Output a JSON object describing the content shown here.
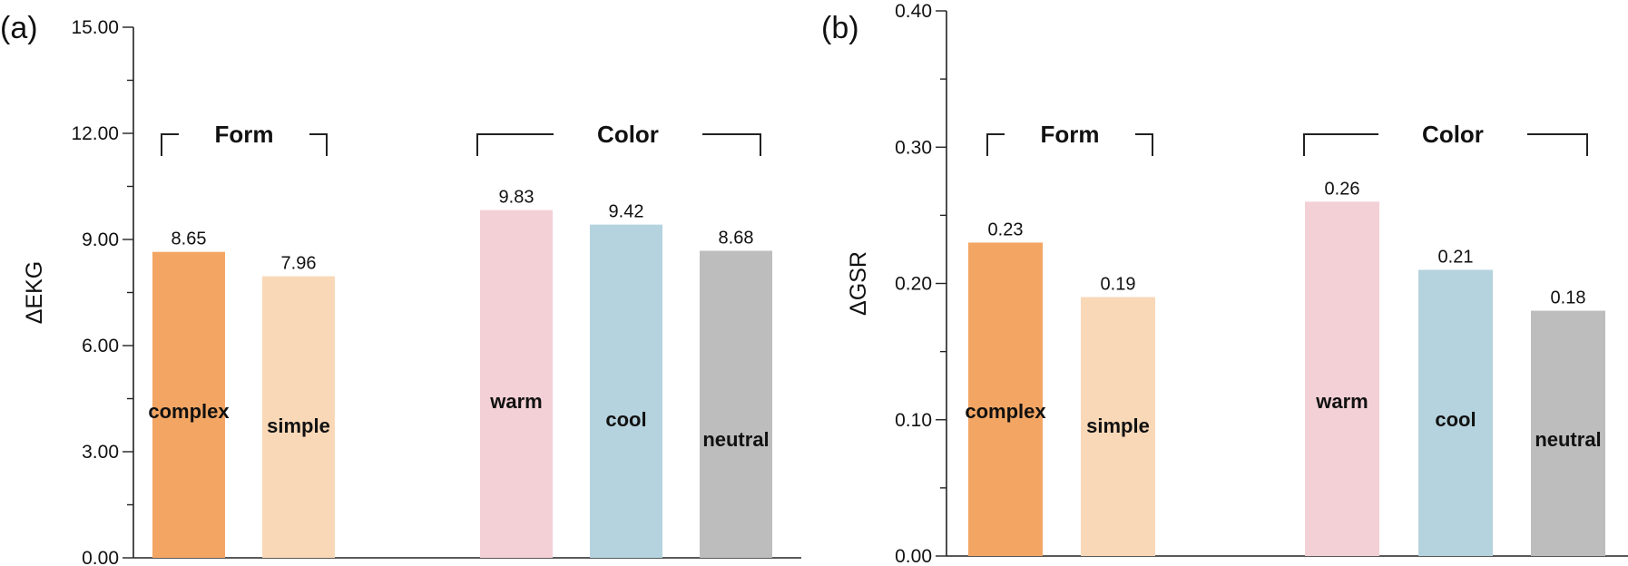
{
  "chart_data": [
    {
      "type": "bar",
      "panel_label": "(a)",
      "ylabel": "ΔEKG",
      "ylim": [
        0,
        15
      ],
      "yticks": [
        "0.00",
        "3.00",
        "6.00",
        "9.00",
        "12.00",
        "15.00"
      ],
      "ytick_values": [
        0,
        3,
        6,
        9,
        12,
        15
      ],
      "categories": [
        "complex",
        "simple",
        "warm",
        "cool",
        "neutral"
      ],
      "values": [
        8.65,
        7.96,
        9.83,
        9.42,
        8.68
      ],
      "value_labels": [
        "8.65",
        "7.96",
        "9.83",
        "9.42",
        "8.68"
      ],
      "colors": [
        "#f3a664",
        "#f9d8b8",
        "#f3d0d5",
        "#b5d3de",
        "#bdbdbd"
      ],
      "groups": [
        {
          "label": "Form",
          "members": [
            0,
            1
          ]
        },
        {
          "label": "Color",
          "members": [
            2,
            3,
            4
          ]
        }
      ]
    },
    {
      "type": "bar",
      "panel_label": "(b)",
      "ylabel": "ΔGSR",
      "ylim": [
        0,
        0.4
      ],
      "yticks": [
        "0.00",
        "0.10",
        "0.20",
        "0.30",
        "0.40"
      ],
      "ytick_values": [
        0,
        0.1,
        0.2,
        0.3,
        0.4
      ],
      "categories": [
        "complex",
        "simple",
        "warm",
        "cool",
        "neutral"
      ],
      "values": [
        0.23,
        0.19,
        0.26,
        0.21,
        0.18
      ],
      "value_labels": [
        "0.23",
        "0.19",
        "0.26",
        "0.21",
        "0.18"
      ],
      "colors": [
        "#f3a664",
        "#f9d8b8",
        "#f3d0d5",
        "#b5d3de",
        "#bdbdbd"
      ],
      "groups": [
        {
          "label": "Form",
          "members": [
            0,
            1
          ]
        },
        {
          "label": "Color",
          "members": [
            2,
            3,
            4
          ]
        }
      ]
    }
  ]
}
